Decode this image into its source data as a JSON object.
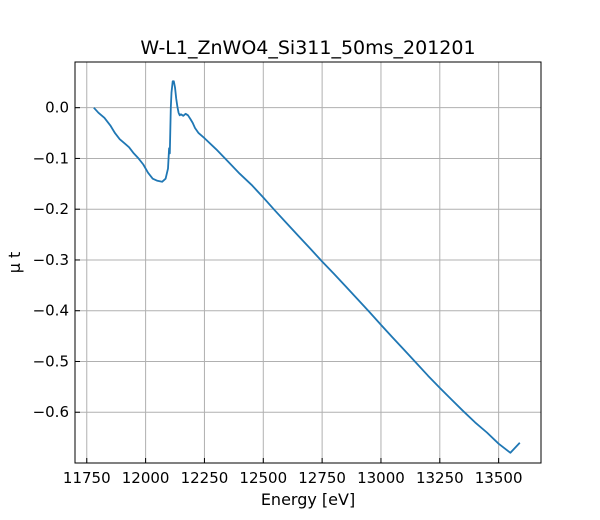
{
  "chart_data": {
    "type": "line",
    "title": "W-L1_ZnWO4_Si311_50ms_201201",
    "xlabel": "Energy [eV]",
    "ylabel": "μ t",
    "xlim": [
      11700,
      13680
    ],
    "ylim": [
      -0.7,
      0.09
    ],
    "grid": true,
    "legend": "none",
    "x_ticks": [
      11750,
      12000,
      12250,
      12500,
      12750,
      13000,
      13250,
      13500
    ],
    "x_tick_labels": [
      "11750",
      "12000",
      "12250",
      "12500",
      "12750",
      "13000",
      "13250",
      "13500"
    ],
    "y_ticks": [
      0.0,
      -0.1,
      -0.2,
      -0.3,
      -0.4,
      -0.5,
      -0.6
    ],
    "y_tick_labels": [
      "0.0",
      "−0.1",
      "−0.2",
      "−0.3",
      "−0.4",
      "−0.5",
      "−0.6"
    ],
    "series": [
      {
        "color": "#1f77b4",
        "x": [
          11780,
          11800,
          11825,
          11850,
          11870,
          11890,
          11910,
          11930,
          11950,
          11970,
          11990,
          12010,
          12030,
          12050,
          12070,
          12085,
          12095,
          12100,
          12103,
          12107,
          12110,
          12115,
          12120,
          12125,
          12130,
          12135,
          12140,
          12145,
          12150,
          12160,
          12170,
          12180,
          12190,
          12200,
          12210,
          12225,
          12250,
          12300,
          12350,
          12400,
          12450,
          12500,
          12550,
          12600,
          12650,
          12700,
          12750,
          12800,
          12850,
          12900,
          12950,
          13000,
          13050,
          13100,
          13150,
          13200,
          13250,
          13300,
          13350,
          13400,
          13450,
          13500,
          13550,
          13590
        ],
        "y": [
          0.0,
          -0.01,
          -0.02,
          -0.035,
          -0.05,
          -0.062,
          -0.07,
          -0.078,
          -0.09,
          -0.1,
          -0.112,
          -0.128,
          -0.14,
          -0.144,
          -0.146,
          -0.14,
          -0.12,
          -0.08,
          -0.09,
          0.0,
          0.03,
          0.052,
          0.052,
          0.04,
          0.018,
          0.002,
          -0.01,
          -0.015,
          -0.013,
          -0.016,
          -0.012,
          -0.015,
          -0.022,
          -0.03,
          -0.04,
          -0.05,
          -0.06,
          -0.082,
          -0.106,
          -0.13,
          -0.152,
          -0.177,
          -0.203,
          -0.228,
          -0.253,
          -0.278,
          -0.303,
          -0.327,
          -0.352,
          -0.377,
          -0.402,
          -0.428,
          -0.453,
          -0.478,
          -0.503,
          -0.528,
          -0.552,
          -0.575,
          -0.598,
          -0.62,
          -0.64,
          -0.662,
          -0.68,
          -0.66
        ]
      }
    ]
  }
}
